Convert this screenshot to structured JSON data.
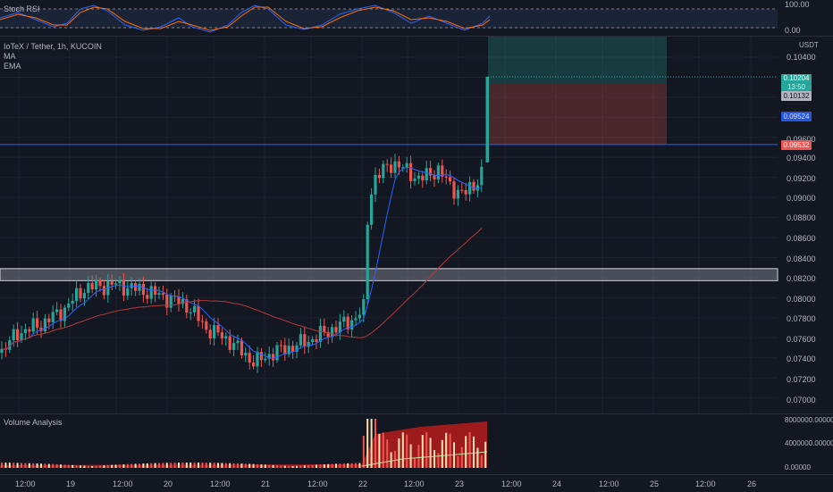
{
  "stoch_pane": {
    "title": "Stoch RSI",
    "levels": [
      "100.00",
      "0.00"
    ]
  },
  "main_pane": {
    "symbol_line": "IoTeX / Tether, 1h, KUCOIN",
    "indicators": [
      "MA",
      "EMA"
    ],
    "currency": "USDT",
    "price_labels": [
      "0.10400",
      "0.09600",
      "0.09400",
      "0.09200",
      "0.09000",
      "0.08800",
      "0.08600",
      "0.08400",
      "0.08200",
      "0.08000",
      "0.07800",
      "0.07600",
      "0.07400",
      "0.07200",
      "0.07000"
    ],
    "tags": {
      "last": "0.10204",
      "countdown": "13:50",
      "entry": "0.10132",
      "line": "0.09524",
      "stop": "0.09532"
    },
    "colors": {
      "up": "#26a69a",
      "down": "#ef5350",
      "ma": "#2962ff",
      "ema": "#b03a3a",
      "support": "#d1d4dc"
    }
  },
  "volume_pane": {
    "title": "Volume Analysis",
    "scale_labels": [
      "8000000.00000",
      "4000000.00000",
      "0.00000"
    ]
  },
  "time_axis": {
    "labels": [
      "12:00",
      "19",
      "12:00",
      "20",
      "12:00",
      "21",
      "12:00",
      "22",
      "12:00",
      "23",
      "12:00",
      "24",
      "12:00",
      "25",
      "12:00",
      "26"
    ]
  }
}
